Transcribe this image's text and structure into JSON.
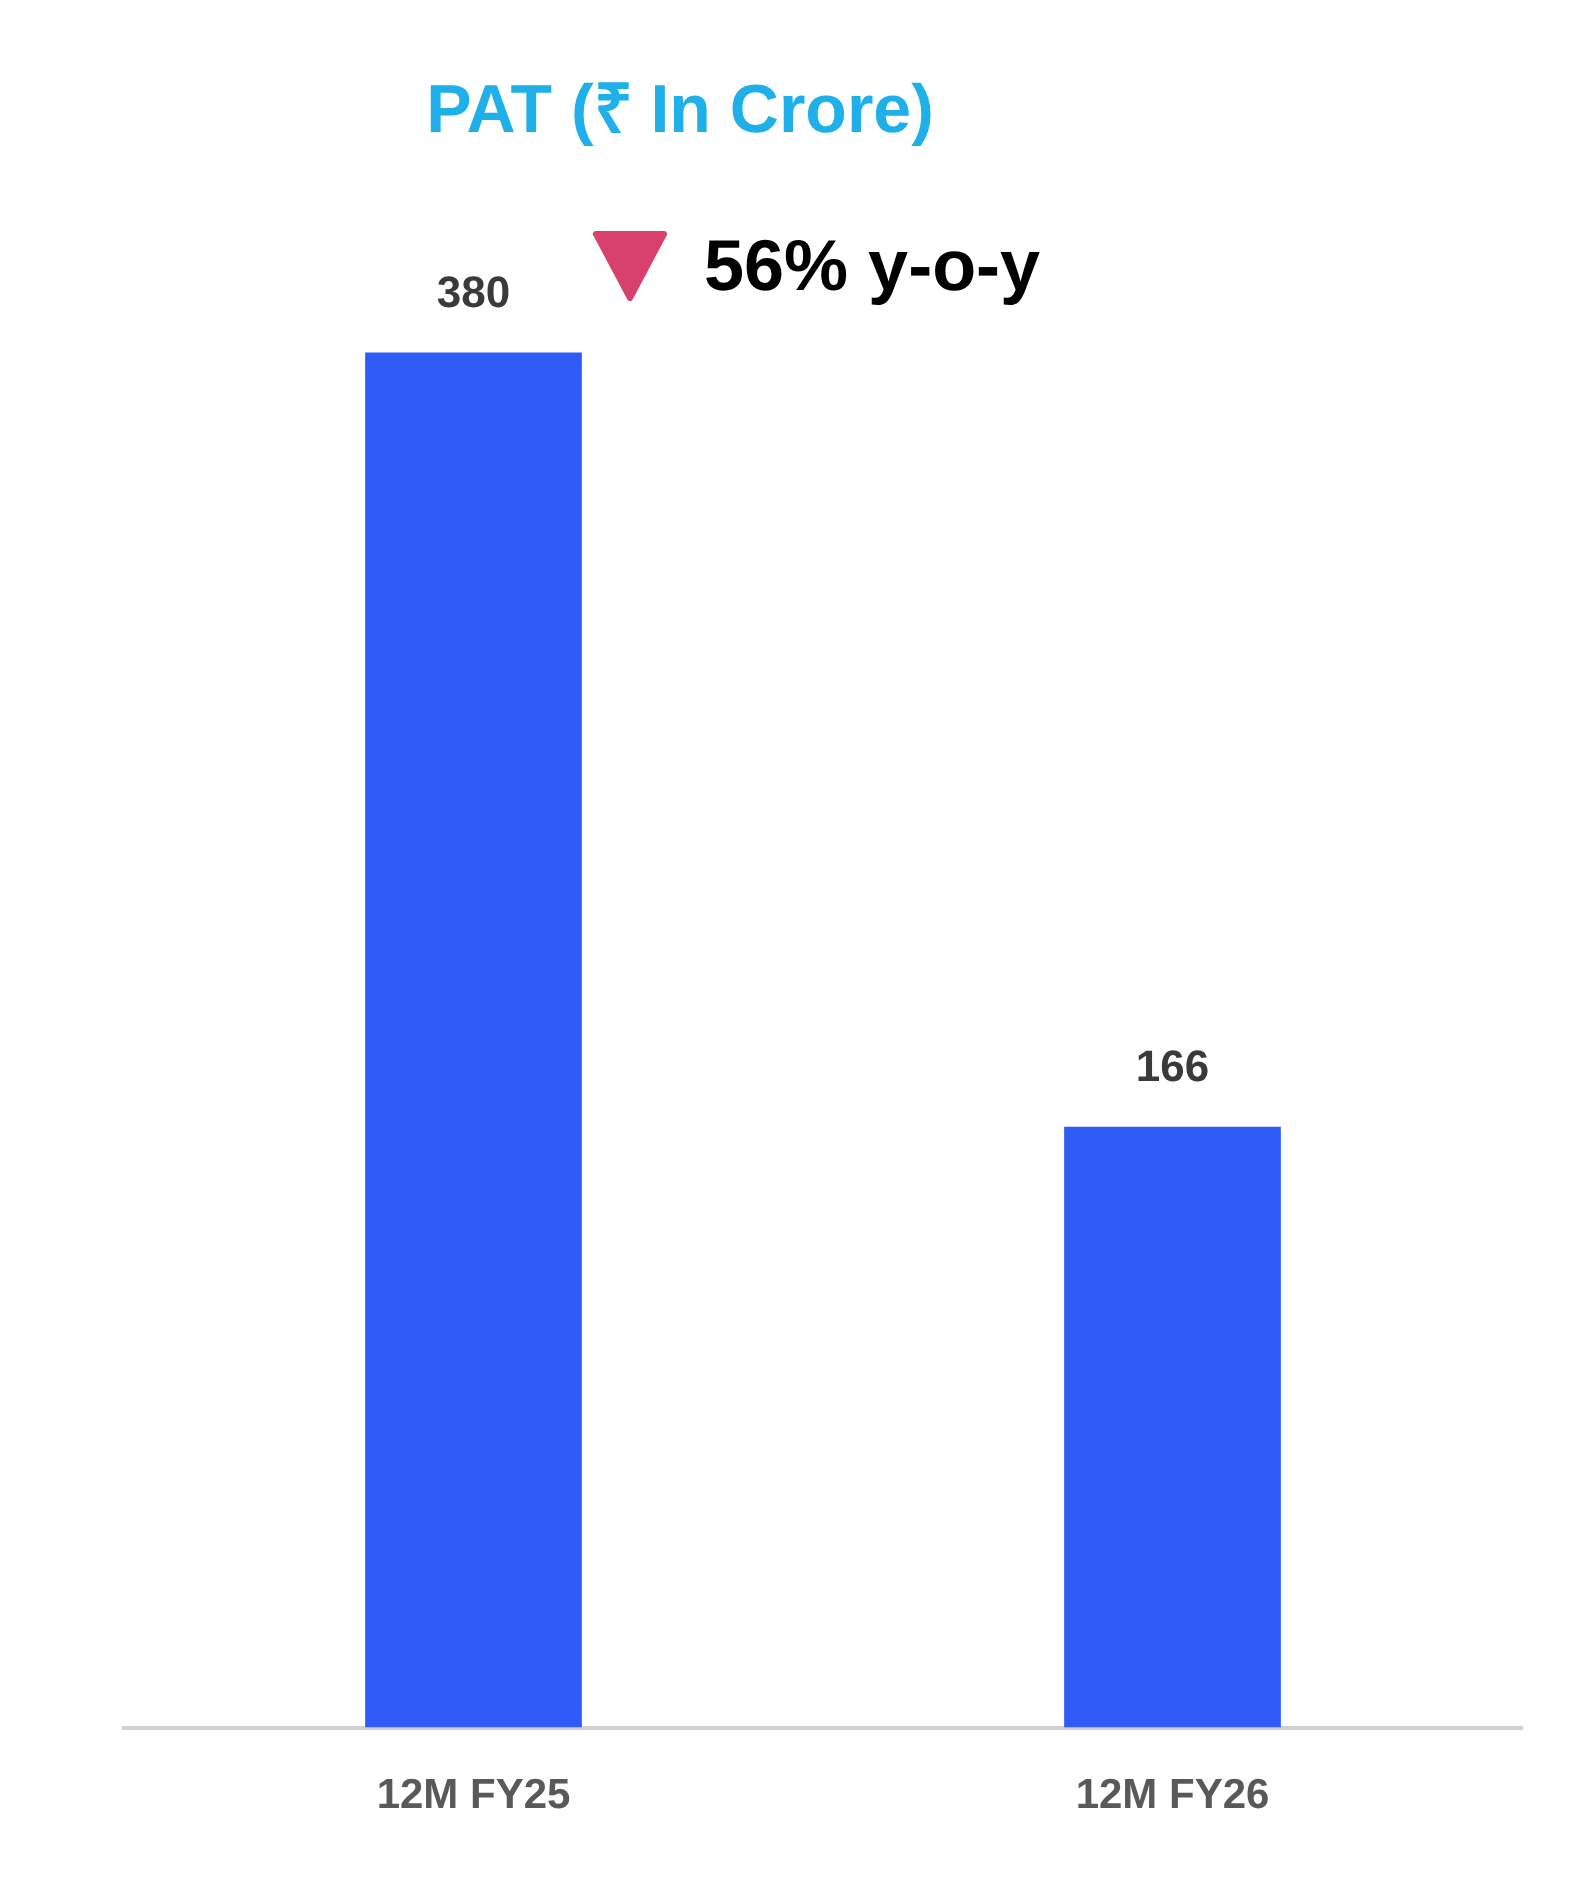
{
  "chart_data": {
    "type": "bar",
    "title": "PAT (₹ In Crore)",
    "categories": [
      "12M FY25",
      "12M FY26"
    ],
    "values": [
      380,
      166
    ],
    "color": "#2f5cf7",
    "data_labels": true,
    "grid": false,
    "annotations": [
      "56% y-o-y"
    ]
  }
}
